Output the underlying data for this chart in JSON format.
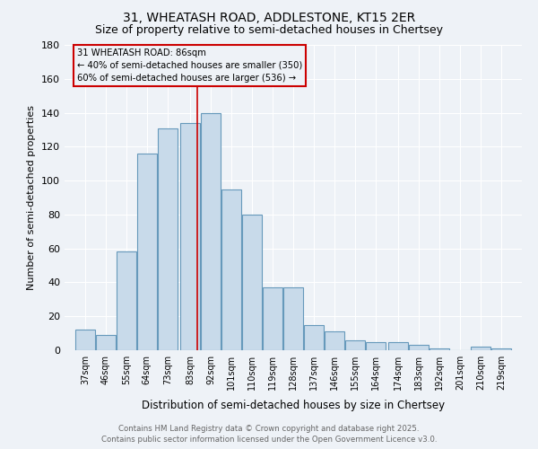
{
  "title": "31, WHEATASH ROAD, ADDLESTONE, KT15 2ER",
  "subtitle": "Size of property relative to semi-detached houses in Chertsey",
  "xlabel": "Distribution of semi-detached houses by size in Chertsey",
  "ylabel": "Number of semi-detached properties",
  "bin_centers": [
    37,
    46,
    55,
    64,
    73,
    83,
    92,
    101,
    110,
    119,
    128,
    137,
    146,
    155,
    164,
    174,
    183,
    192,
    201,
    210,
    219
  ],
  "values": [
    12,
    9,
    58,
    116,
    131,
    134,
    140,
    95,
    80,
    37,
    37,
    15,
    11,
    6,
    5,
    5,
    3,
    1,
    0,
    2,
    1
  ],
  "bar_color": "#c8daea",
  "bar_edge_color": "#6699bb",
  "ref_line_x": 86,
  "ref_line_color": "#cc0000",
  "annotation_title": "31 WHEATASH ROAD: 86sqm",
  "annotation_line1": "← 40% of semi-detached houses are smaller (350)",
  "annotation_line2": "60% of semi-detached houses are larger (536) →",
  "annotation_box_edgecolor": "#cc0000",
  "ylim": [
    0,
    180
  ],
  "yticks": [
    0,
    20,
    40,
    60,
    80,
    100,
    120,
    140,
    160,
    180
  ],
  "footer1": "Contains HM Land Registry data © Crown copyright and database right 2025.",
  "footer2": "Contains public sector information licensed under the Open Government Licence v3.0.",
  "bg_color": "#eef2f7",
  "grid_color": "#ffffff",
  "title_fontsize": 10,
  "subtitle_fontsize": 9
}
